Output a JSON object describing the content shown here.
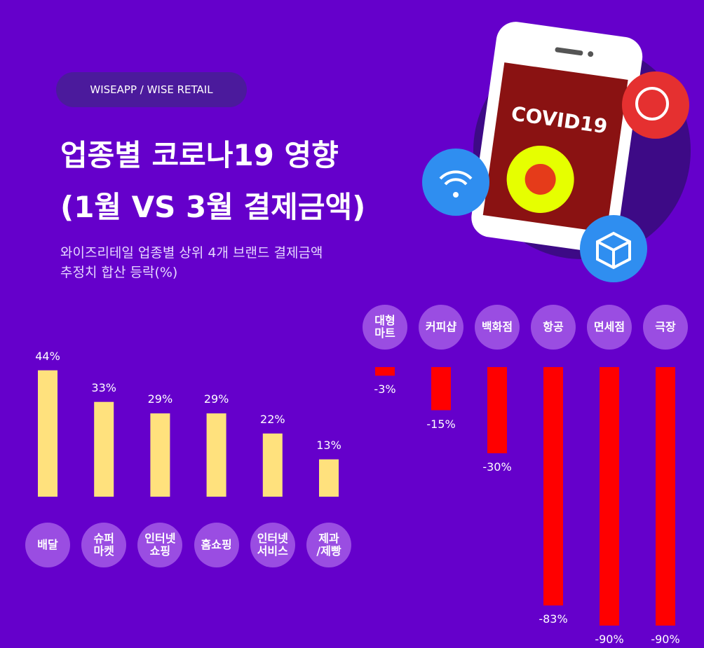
{
  "header": {
    "badge": "WISEAPP / WISE RETAIL",
    "title": [
      "업종별 코로나19 영향",
      "(1월 VS 3월 결제금액)"
    ],
    "subtitle": [
      "와이즈리테일 업종별 상위 4개 브랜드 결제금액",
      "추정치 합산 등락(%)"
    ]
  },
  "illustration": {
    "label": "COVID19"
  },
  "chart_data": [
    {
      "type": "bar",
      "categories": [
        "배달",
        "슈퍼\n마켓",
        "인터넷\n쇼핑",
        "홈쇼핑",
        "인터넷\n서비스",
        "제과\n/제빵"
      ],
      "values": [
        44,
        33,
        29,
        29,
        22,
        13
      ],
      "value_labels": [
        "44%",
        "33%",
        "29%",
        "29%",
        "22%",
        "13%"
      ],
      "color": "#ffe17d"
    },
    {
      "type": "bar",
      "categories": [
        "대형\n마트",
        "커피샵",
        "백화점",
        "항공",
        "면세점",
        "극장"
      ],
      "values": [
        -3,
        -15,
        -30,
        -83,
        -90,
        -90
      ],
      "value_labels": [
        "-3%",
        "-15%",
        "-30%",
        "-83%",
        "-90%",
        "-90%"
      ],
      "color": "#ff0000"
    }
  ]
}
